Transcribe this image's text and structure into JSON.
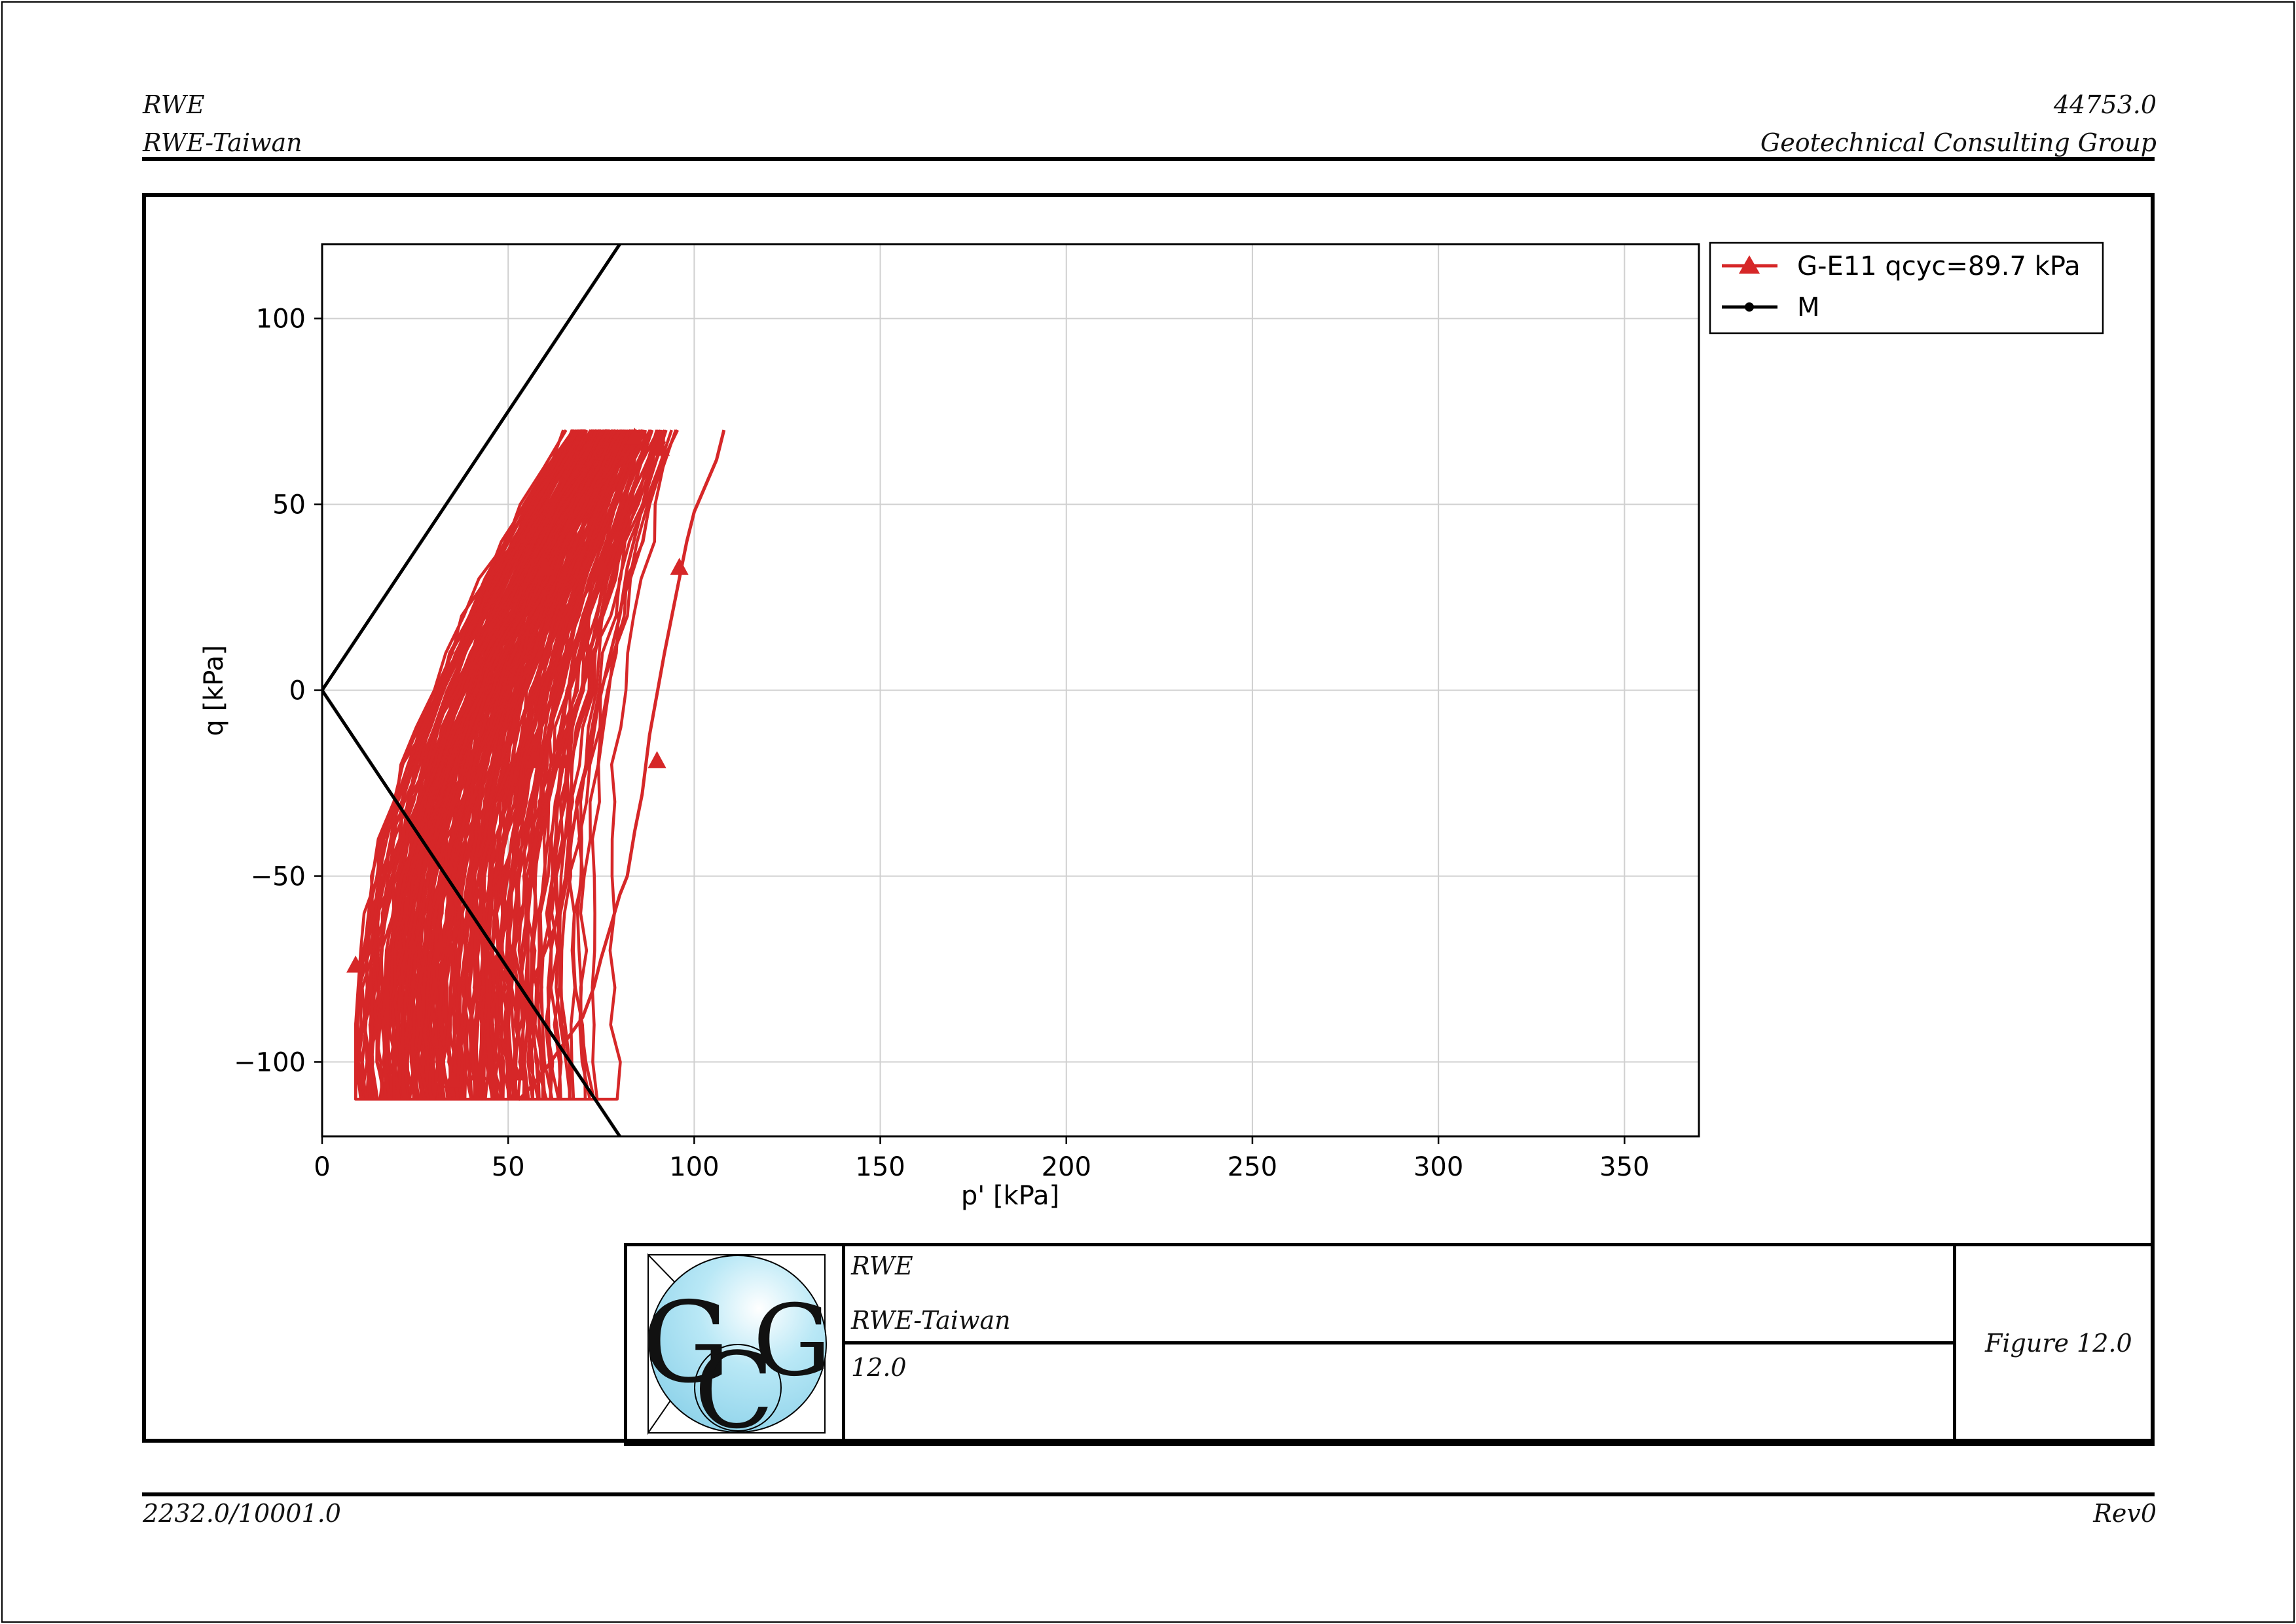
{
  "header": {
    "left_line1": "RWE",
    "left_line2": "RWE-Taiwan",
    "right_line1": "44753.0",
    "right_line2": "Geotechnical Consulting Group"
  },
  "footer": {
    "left": "2232.0/10001.0",
    "right": "Rev0"
  },
  "title_block": {
    "logo_letters": "GCG",
    "client": "RWE",
    "project": "RWE-Taiwan",
    "number": "12.0",
    "figure_label": "Figure 12.0"
  },
  "colors": {
    "series_red": "#d62728",
    "line_black": "#000000"
  },
  "chart_data": {
    "type": "line",
    "xlabel": "p' [kPa]",
    "ylabel": "q [kPa]",
    "xlim": [
      0,
      370
    ],
    "ylim": [
      -120,
      120
    ],
    "xticks": [
      0,
      50,
      100,
      150,
      200,
      250,
      300,
      350
    ],
    "yticks": [
      -100,
      -50,
      0,
      50,
      100
    ],
    "grid": true,
    "legend_position": "outside-top-right",
    "series": [
      {
        "name": "G-E11 qcyc=89.7 kPa",
        "marker": "triangle",
        "color": "#d62728",
        "x": [
          108,
          106,
          100,
          98,
          96,
          92,
          88,
          87,
          86,
          84,
          82,
          80,
          78,
          75,
          73,
          70,
          65,
          60,
          55,
          53,
          51,
          52,
          56,
          60,
          64,
          66,
          67,
          69,
          72,
          74,
          77,
          80,
          82,
          85,
          88,
          92
        ],
        "y": [
          70,
          62,
          48,
          40,
          30,
          10,
          -12,
          -20,
          -28,
          -38,
          -50,
          -55,
          -62,
          -72,
          -80,
          -88,
          -95,
          -102,
          -108,
          -110,
          -105,
          -95,
          -80,
          -70,
          -60,
          -50,
          -40,
          -28,
          -18,
          -5,
          8,
          20,
          33,
          45,
          58,
          67
        ]
      },
      {
        "name": "M",
        "marker": "dot",
        "color": "#000000",
        "x": [
          80,
          0,
          80
        ],
        "y": [
          120,
          0,
          -120
        ]
      }
    ],
    "markers": [
      {
        "x": 91,
        "y": 65
      },
      {
        "x": 96,
        "y": 33
      },
      {
        "x": 90,
        "y": -19
      },
      {
        "x": 65,
        "y": -19
      },
      {
        "x": 57,
        "y": -19
      },
      {
        "x": 47,
        "y": -73
      },
      {
        "x": 42,
        "y": -103
      },
      {
        "x": 52,
        "y": -103
      },
      {
        "x": 9,
        "y": -74
      },
      {
        "x": 35,
        "y": -105
      },
      {
        "x": 84,
        "y": 68
      },
      {
        "x": 75,
        "y": 33
      },
      {
        "x": 60,
        "y": 33
      }
    ]
  }
}
